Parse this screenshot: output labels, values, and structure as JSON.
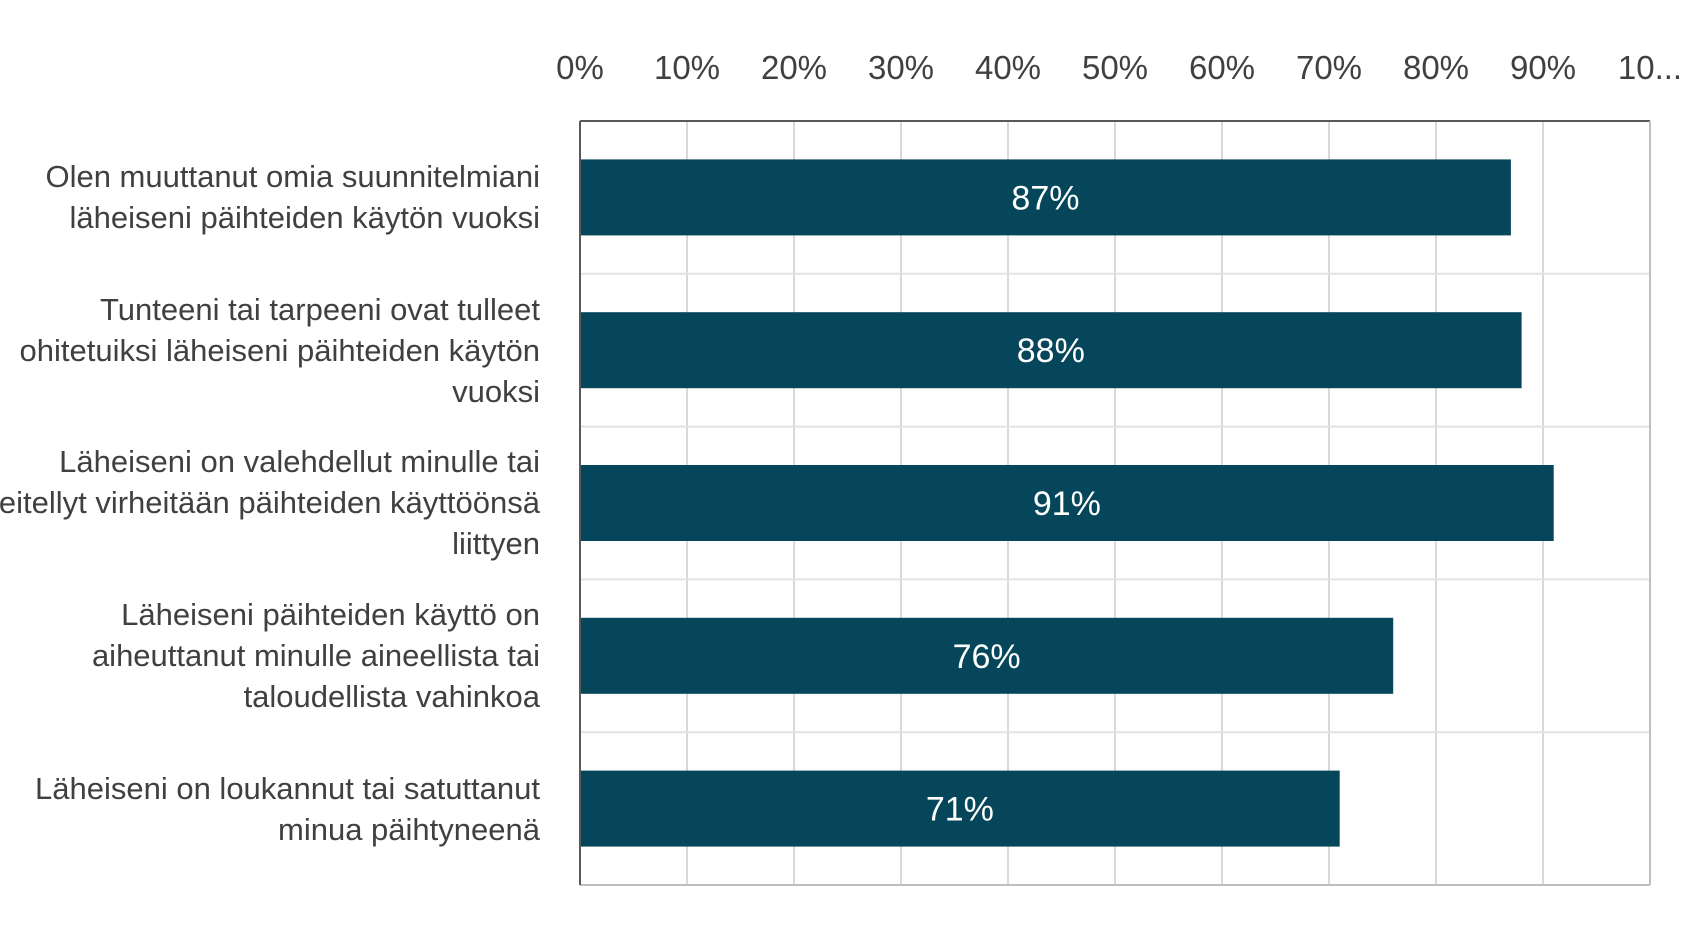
{
  "chart_data": {
    "type": "bar",
    "orientation": "horizontal",
    "categories": [
      "Olen muuttanut omia suunnitelmiani läheiseni päihteiden käytön vuoksi",
      "Tunteeni tai tarpeeni ovat tulleet ohitetuiksi läheiseni päihteiden käytön vuoksi",
      "Läheiseni on valehdellut minulle tai peitellyt virheitään päihteiden käyttöönsä liittyen",
      "Läheiseni päihteiden käyttö on aiheuttanut minulle aineellista tai taloudellista vahinkoa",
      "Läheiseni on loukannut tai satuttanut minua päihtyneenä"
    ],
    "values": [
      87,
      88,
      91,
      76,
      71
    ],
    "data_labels": [
      "87%",
      "88%",
      "91%",
      "76%",
      "71%"
    ],
    "x_ticks": [
      "0%",
      "10%",
      "20%",
      "30%",
      "40%",
      "50%",
      "60%",
      "70%",
      "80%",
      "90%",
      "10..."
    ],
    "xlim": [
      0,
      100
    ],
    "x_axis_position": "top",
    "grid": true,
    "title": "",
    "xlabel": "",
    "ylabel": "",
    "bar_color": "#05465a"
  }
}
